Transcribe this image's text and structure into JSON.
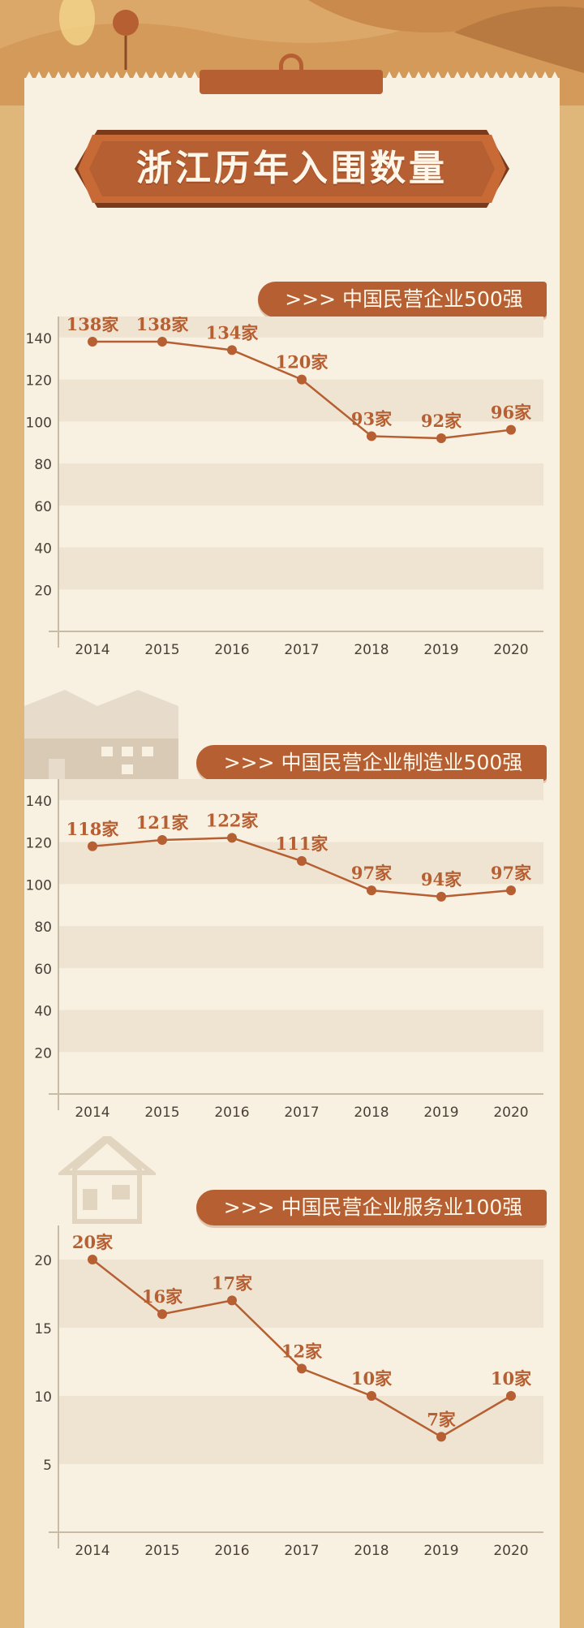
{
  "title": "浙江历年入围数量",
  "colors": {
    "accent": "#b65f32",
    "line": "#b65f32",
    "paper": "#f8f0e1",
    "band": "#efe4d2",
    "frame": "#e0b77a",
    "axis_text": "#4a4038"
  },
  "chart_data": [
    {
      "type": "line",
      "title": "中国民营企业500强",
      "title_prefix": ">>>",
      "x": [
        "2014",
        "2015",
        "2016",
        "2017",
        "2018",
        "2019",
        "2020"
      ],
      "values": [
        138,
        138,
        134,
        120,
        93,
        92,
        96
      ],
      "labels": [
        "138家",
        "138家",
        "134家",
        "120家",
        "93家",
        "92家",
        "96家"
      ],
      "yticks": [
        20,
        40,
        60,
        80,
        100,
        120,
        140
      ],
      "ylim": [
        0,
        150
      ],
      "grid": "alternating bands"
    },
    {
      "type": "line",
      "title": "中国民营企业制造业500强",
      "title_prefix": ">>>",
      "x": [
        "2014",
        "2015",
        "2016",
        "2017",
        "2018",
        "2019",
        "2020"
      ],
      "values": [
        118,
        121,
        122,
        111,
        97,
        94,
        97
      ],
      "labels": [
        "118家",
        "121家",
        "122家",
        "111家",
        "97家",
        "94家",
        "97家"
      ],
      "yticks": [
        20,
        40,
        60,
        80,
        100,
        120,
        140
      ],
      "ylim": [
        0,
        150
      ],
      "grid": "alternating bands"
    },
    {
      "type": "line",
      "title": "中国民营企业服务业100强",
      "title_prefix": ">>>",
      "x": [
        "2014",
        "2015",
        "2016",
        "2017",
        "2018",
        "2019",
        "2020"
      ],
      "values": [
        20,
        16,
        17,
        12,
        10,
        7,
        10
      ],
      "labels": [
        "20家",
        "16家",
        "17家",
        "12家",
        "10家",
        "7家",
        "10家"
      ],
      "yticks": [
        5,
        10,
        15,
        20
      ],
      "ylim": [
        0,
        22.5
      ],
      "grid": "alternating bands"
    }
  ]
}
